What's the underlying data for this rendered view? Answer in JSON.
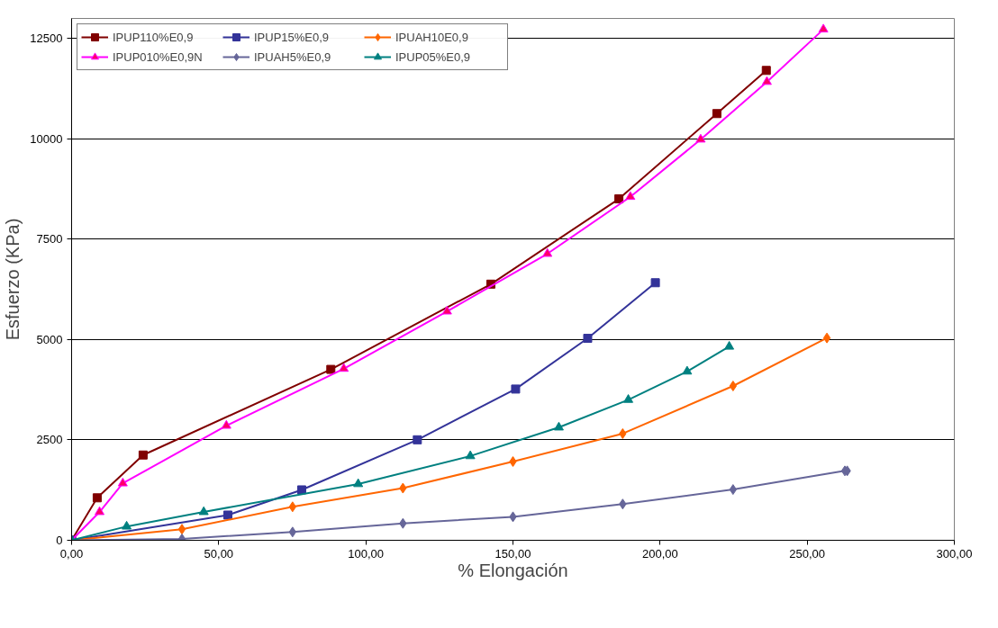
{
  "chart_data": {
    "type": "line",
    "xlabel": "% Elongación",
    "ylabel": "Esfuerzo (KPa)",
    "xlim": [
      0,
      300
    ],
    "ylim": [
      0,
      13000
    ],
    "xticks": [
      {
        "value": 0,
        "label": "0,00"
      },
      {
        "value": 50,
        "label": "50,00"
      },
      {
        "value": 100,
        "label": "100,00"
      },
      {
        "value": 150,
        "label": "150,00"
      },
      {
        "value": 200,
        "label": "200,00"
      },
      {
        "value": 250,
        "label": "250,00"
      },
      {
        "value": 300,
        "label": "300,00"
      }
    ],
    "yticks": [
      0,
      2500,
      5000,
      7500,
      10000,
      12500
    ],
    "grid": "y",
    "legend": "top left",
    "line_style": "solid",
    "series": [
      {
        "name": "IPUP110%E0,9",
        "color": "#800000",
        "marker": "square",
        "x": [
          0,
          8.7,
          24.3,
          88.1,
          142.5,
          186.0,
          219.3,
          236.1
        ],
        "values": [
          0,
          1058,
          2124,
          4257,
          6381,
          8505,
          10630,
          11705
        ]
      },
      {
        "name": "IPUP15%E0,9",
        "color": "#333399",
        "marker": "square",
        "x": [
          0,
          53.1,
          78.2,
          117.5,
          150.9,
          175.4,
          198.4
        ],
        "values": [
          0,
          628,
          1256,
          2503,
          3767,
          5031,
          6416
        ]
      },
      {
        "name": "IPUAH10E0,9",
        "color": "#ff6600",
        "marker": "diamond",
        "x": [
          0,
          37.5,
          75.1,
          112.6,
          150,
          187.3,
          224.8,
          256.7
        ],
        "values": [
          0,
          275,
          834,
          1299,
          1961,
          2657,
          3844,
          5040
        ]
      },
      {
        "name": "IPUP010%E0,9N",
        "color": "#ff00ff",
        "marker": "triangle",
        "x": [
          0,
          9.5,
          17.4,
          52.6,
          92.5,
          127.6,
          161.7,
          189.9,
          213.8,
          236.3,
          255.5
        ],
        "values": [
          0,
          705,
          1419,
          2855,
          4274,
          5702,
          7138,
          8557,
          9985,
          11421,
          12728
        ]
      },
      {
        "name": "IPUAH5%E0,9",
        "color": "#666699",
        "marker": "diamond",
        "x": [
          0,
          37.5,
          75.1,
          112.6,
          150,
          187.3,
          224.8,
          262.8,
          263.6
        ],
        "values": [
          0,
          34,
          206,
          421,
          585,
          903,
          1264,
          1729,
          1729
        ]
      },
      {
        "name": "IPUP05%E0,9",
        "color": "#008080",
        "marker": "triangle",
        "x": [
          0,
          18.7,
          44.9,
          97.4,
          135.5,
          165.6,
          189.2,
          209.2,
          223.5
        ],
        "values": [
          0,
          344,
          705,
          1402,
          2098,
          2812,
          3500,
          4205,
          4825
        ]
      }
    ]
  }
}
